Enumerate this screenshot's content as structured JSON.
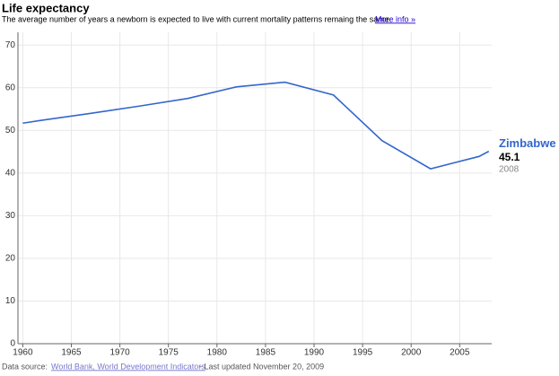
{
  "chart_data": {
    "type": "line",
    "title": "Life expectancy",
    "subtitle": "The average number of years a newborn is expected to live with current mortality patterns remaing the same.",
    "more_info": "More info »",
    "source_label": "Data source:",
    "source_link": "World Bank, World Development Indicators",
    "updated": "- Last updated November 20, 2009",
    "x": [
      1960,
      1962,
      1967,
      1972,
      1977,
      1982,
      1987,
      1992,
      1997,
      2002,
      2007,
      2008
    ],
    "series": [
      {
        "name": "Zimbabwe",
        "color": "#3366cc",
        "values": [
          51.7,
          52.4,
          54.0,
          55.7,
          57.5,
          60.2,
          61.3,
          58.3,
          47.6,
          41.0,
          43.9,
          45.1
        ]
      }
    ],
    "xlim": [
      1959.5,
      2008.3
    ],
    "xticks": [
      1960,
      1965,
      1970,
      1975,
      1980,
      1985,
      1990,
      1995,
      2000,
      2005
    ],
    "ylim": [
      0,
      73
    ],
    "yticks": [
      0,
      10,
      20,
      30,
      40,
      50,
      60,
      70
    ],
    "grid": true
  }
}
